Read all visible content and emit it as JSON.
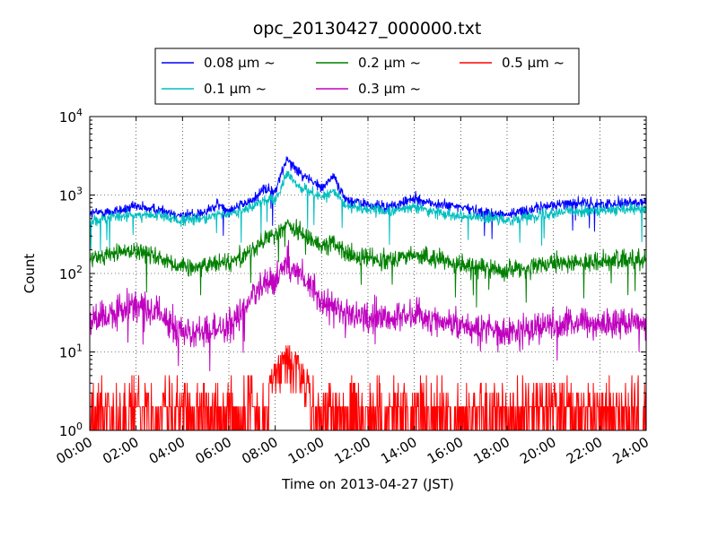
{
  "chart_data": {
    "type": "line",
    "title": "opc_20130427_000000.txt",
    "xlabel": "Time on 2013-04-27 (JST)",
    "ylabel": "Count",
    "xlim": [
      "00:00",
      "24:00"
    ],
    "ylim": [
      1,
      10000
    ],
    "yscale": "log",
    "grid": true,
    "legend_position": "top-center",
    "x_ticks": [
      "00:00",
      "02:00",
      "04:00",
      "06:00",
      "08:00",
      "10:00",
      "12:00",
      "14:00",
      "16:00",
      "18:00",
      "20:00",
      "22:00",
      "24:00"
    ],
    "y_ticks": [
      {
        "value": 1,
        "base": "10",
        "exp": "0"
      },
      {
        "value": 10,
        "base": "10",
        "exp": "1"
      },
      {
        "value": 100,
        "base": "10",
        "exp": "2"
      },
      {
        "value": 1000,
        "base": "10",
        "exp": "3"
      },
      {
        "value": 10000,
        "base": "10",
        "exp": "4"
      }
    ],
    "x": [
      "00:00",
      "01:00",
      "02:00",
      "03:00",
      "04:00",
      "05:00",
      "05:30",
      "06:00",
      "07:00",
      "07:30",
      "08:00",
      "08:30",
      "09:00",
      "09:30",
      "10:00",
      "10:30",
      "11:00",
      "11:30",
      "12:00",
      "13:00",
      "14:00",
      "15:00",
      "16:00",
      "17:00",
      "18:00",
      "19:00",
      "20:00",
      "21:00",
      "22:00",
      "23:00",
      "24:00"
    ],
    "series": [
      {
        "name": "0.08 μm ~",
        "color": "#0000ff",
        "values": [
          580,
          620,
          700,
          650,
          550,
          600,
          750,
          650,
          850,
          1200,
          1100,
          3000,
          2000,
          1600,
          1200,
          1800,
          900,
          800,
          750,
          700,
          900,
          750,
          700,
          600,
          560,
          650,
          750,
          800,
          750,
          800,
          800
        ]
      },
      {
        "name": "0.1 μm ~",
        "color": "#00bfbf",
        "values": [
          480,
          520,
          560,
          540,
          470,
          500,
          600,
          550,
          700,
          900,
          850,
          1800,
          1300,
          1100,
          950,
          1100,
          750,
          700,
          650,
          620,
          700,
          600,
          550,
          500,
          480,
          530,
          600,
          630,
          620,
          650,
          650
        ]
      },
      {
        "name": "0.2 μm ~",
        "color": "#008000",
        "values": [
          150,
          180,
          200,
          160,
          120,
          125,
          140,
          140,
          200,
          260,
          300,
          430,
          330,
          280,
          230,
          250,
          180,
          160,
          155,
          155,
          170,
          150,
          130,
          115,
          110,
          120,
          130,
          140,
          140,
          150,
          150
        ]
      },
      {
        "name": "0.3 μm ~",
        "color": "#bf00bf",
        "values": [
          25,
          30,
          40,
          30,
          18,
          17,
          20,
          20,
          50,
          65,
          80,
          150,
          100,
          75,
          45,
          38,
          30,
          28,
          27,
          28,
          30,
          25,
          22,
          20,
          18,
          20,
          22,
          24,
          22,
          24,
          25
        ]
      },
      {
        "name": "0.5 μm ~",
        "color": "#ff0000",
        "values": [
          2,
          2,
          2,
          2,
          1.5,
          1.5,
          1.5,
          1.5,
          1.5,
          2,
          5,
          8,
          6,
          3,
          2,
          2,
          2,
          2,
          2,
          2,
          2,
          2,
          2,
          2,
          2,
          2,
          2,
          2,
          2,
          2,
          2
        ]
      }
    ]
  }
}
